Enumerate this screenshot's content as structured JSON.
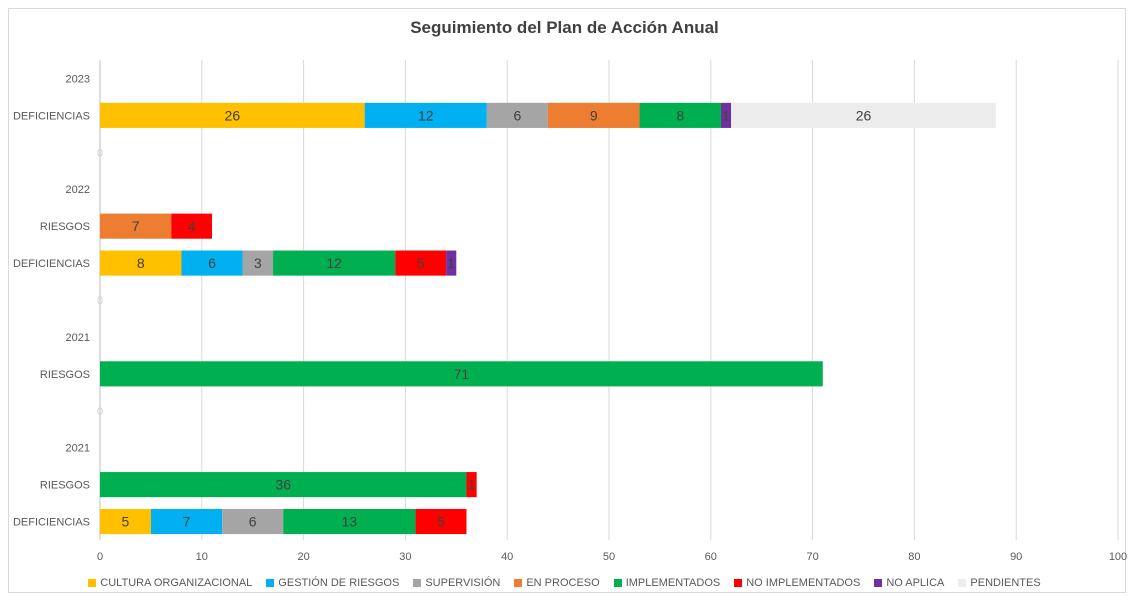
{
  "chart_data": {
    "type": "bar",
    "orientation": "horizontal",
    "stacked": true,
    "title": "Seguimiento del Plan de Acción Anual",
    "xlim": [
      0,
      100
    ],
    "xticks": [
      0,
      10,
      20,
      30,
      40,
      50,
      60,
      70,
      80,
      90,
      100
    ],
    "grid": true,
    "legend_position": "bottom",
    "series": [
      {
        "name": "CULTURA ORGANIZACIONAL",
        "color": "#FFC000"
      },
      {
        "name": "GESTIÓN DE RIESGOS",
        "color": "#00B0F0"
      },
      {
        "name": "SUPERVISIÓN",
        "color": "#A5A5A5"
      },
      {
        "name": "EN PROCESO",
        "color": "#ED7D31"
      },
      {
        "name": "IMPLEMENTADOS",
        "color": "#00B050"
      },
      {
        "name": "NO IMPLEMENTADOS",
        "color": "#FF0000"
      },
      {
        "name": "NO APLICA",
        "color": "#7030A0"
      },
      {
        "name": "PENDIENTES",
        "color": "#EDEDED"
      }
    ],
    "categories": [
      {
        "label": "2023",
        "type": "year",
        "values": null
      },
      {
        "label": "DEFICIENCIAS",
        "type": "bar",
        "values": [
          26,
          12,
          6,
          9,
          8,
          0,
          1,
          26
        ]
      },
      {
        "label": "0",
        "type": "sep",
        "values": null
      },
      {
        "label": "2022",
        "type": "year",
        "values": null
      },
      {
        "label": "RIESGOS",
        "type": "bar",
        "values": [
          0,
          0,
          0,
          7,
          0,
          4,
          0,
          0
        ]
      },
      {
        "label": "DEFICIENCIAS",
        "type": "bar",
        "values": [
          8,
          6,
          3,
          0,
          12,
          5,
          1,
          0
        ]
      },
      {
        "label": "0",
        "type": "sep",
        "values": null
      },
      {
        "label": "2021",
        "type": "year",
        "values": null
      },
      {
        "label": "RIESGOS",
        "type": "bar",
        "values": [
          0,
          0,
          0,
          0,
          71,
          0,
          0,
          0
        ]
      },
      {
        "label": "0",
        "type": "sep",
        "values": null
      },
      {
        "label": "2021",
        "type": "year",
        "values": null
      },
      {
        "label": "RIESGOS",
        "type": "bar",
        "values": [
          0,
          0,
          0,
          0,
          36,
          1,
          0,
          0
        ]
      },
      {
        "label": "DEFICIENCIAS",
        "type": "bar",
        "values": [
          5,
          7,
          6,
          0,
          13,
          5,
          0,
          0
        ]
      }
    ]
  }
}
